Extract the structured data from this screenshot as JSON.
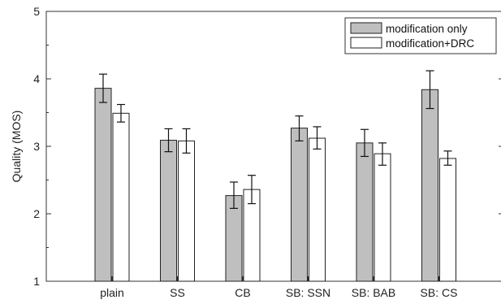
{
  "chart_data": {
    "type": "bar",
    "title": "",
    "xlabel": "",
    "ylabel": "Quality (MOS)",
    "ylim": [
      1,
      5
    ],
    "yticks": [
      1,
      2,
      3,
      4,
      5
    ],
    "grid": false,
    "legend_position": "top-right",
    "categories": [
      "plain",
      "SS",
      "CB",
      "SB: SSN",
      "SB: BAB",
      "SB: CS"
    ],
    "series": [
      {
        "name": "modification only",
        "color": "#bfbfbf",
        "values": [
          3.86,
          3.09,
          2.27,
          3.27,
          3.05,
          3.84
        ],
        "err_low": [
          3.65,
          2.92,
          2.08,
          3.08,
          2.85,
          3.56
        ],
        "err_high": [
          4.07,
          3.26,
          2.47,
          3.45,
          3.25,
          4.12
        ]
      },
      {
        "name": "modification+DRC",
        "color": "#ffffff",
        "values": [
          3.49,
          3.08,
          2.36,
          3.12,
          2.89,
          2.82
        ],
        "err_low": [
          3.36,
          2.9,
          2.15,
          2.96,
          2.72,
          2.72
        ],
        "err_high": [
          3.62,
          3.26,
          2.57,
          3.29,
          3.05,
          2.93
        ]
      }
    ]
  }
}
